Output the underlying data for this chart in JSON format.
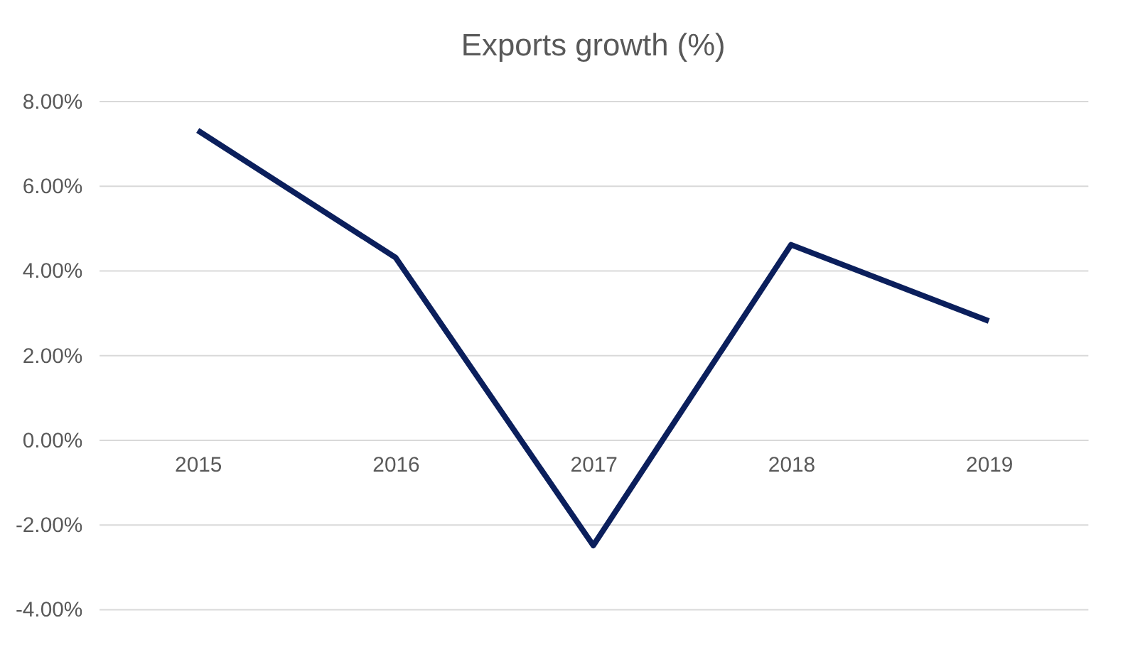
{
  "chart_data": {
    "type": "line",
    "title": "Exports growth (%)",
    "categories": [
      "2015",
      "2016",
      "2017",
      "2018",
      "2019"
    ],
    "series": [
      {
        "color": "#0b1f5c",
        "values": [
          7.3,
          4.3,
          -2.5,
          4.6,
          2.8
        ]
      }
    ],
    "ylim": [
      -4,
      8
    ],
    "yticks": [
      {
        "value": -4,
        "label": "-4.00%"
      },
      {
        "value": -2,
        "label": "-2.00%"
      },
      {
        "value": 0,
        "label": "0.00%"
      },
      {
        "value": 2,
        "label": "2.00%"
      },
      {
        "value": 4,
        "label": "4.00%"
      },
      {
        "value": 6,
        "label": "6.00%"
      },
      {
        "value": 8,
        "label": "8.00%"
      }
    ],
    "grid": "y",
    "marker": "none",
    "line_style": "solid"
  }
}
